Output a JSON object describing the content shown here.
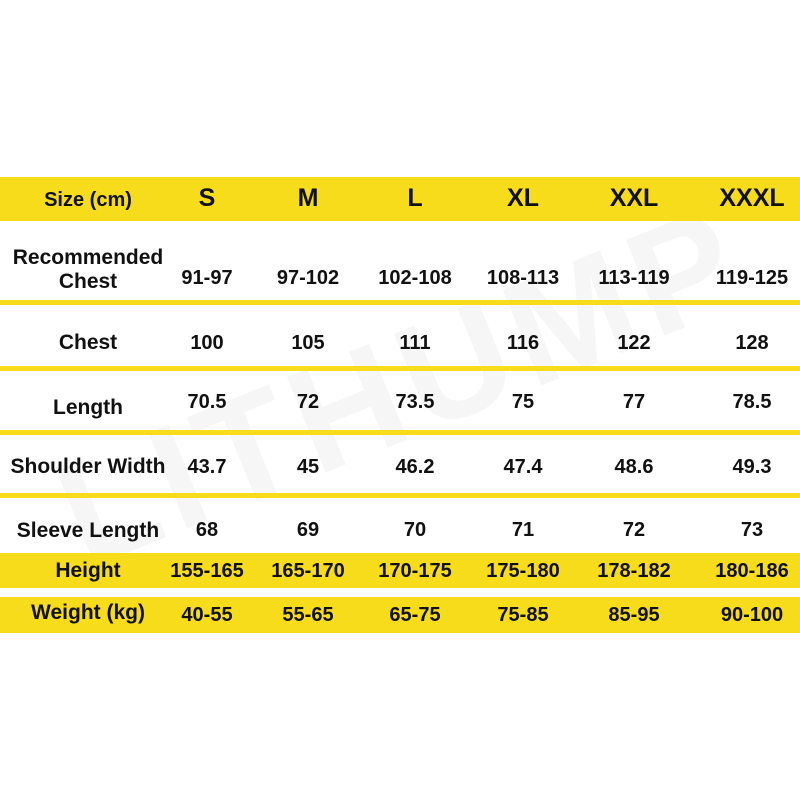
{
  "watermark": "LITHUMP POWERSPORTS",
  "colors": {
    "band": "#f7dc1b",
    "text": "#111111"
  },
  "header": {
    "label": "Size (cm)",
    "sizes": [
      "S",
      "M",
      "L",
      "XL",
      "XXL",
      "XXXL"
    ]
  },
  "rows": [
    {
      "label": "Recommended Chest",
      "label_lines": [
        "Recommended",
        "Chest"
      ],
      "values": [
        "91-97",
        "97-102",
        "102-108",
        "108-113",
        "113-119",
        "119-125"
      ]
    },
    {
      "label": "Chest",
      "values": [
        "100",
        "105",
        "111",
        "116",
        "122",
        "128"
      ]
    },
    {
      "label": "Length",
      "values": [
        "70.5",
        "72",
        "73.5",
        "75",
        "77",
        "78.5"
      ]
    },
    {
      "label": "Shoulder Width",
      "values": [
        "43.7",
        "45",
        "46.2",
        "47.4",
        "48.6",
        "49.3"
      ]
    },
    {
      "label": "Sleeve Length",
      "values": [
        "68",
        "69",
        "70",
        "71",
        "72",
        "73"
      ]
    },
    {
      "label": "Height",
      "values": [
        "155-165",
        "165-170",
        "170-175",
        "175-180",
        "178-182",
        "180-186"
      ]
    },
    {
      "label": "Weight (kg)",
      "values": [
        "40-55",
        "55-65",
        "65-75",
        "75-85",
        "85-95",
        "90-100"
      ]
    }
  ]
}
